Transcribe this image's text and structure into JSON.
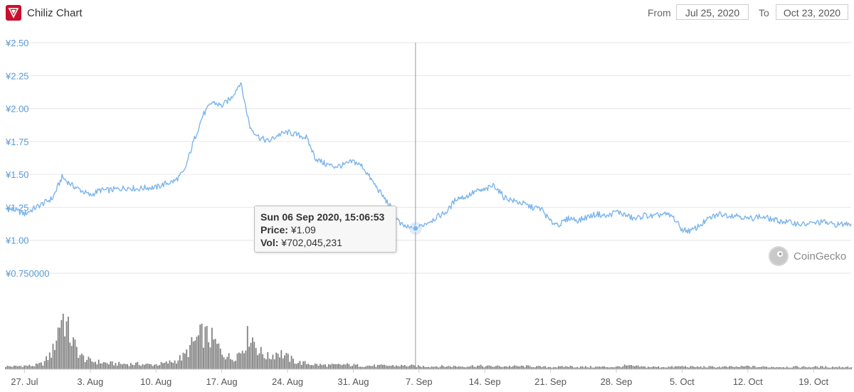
{
  "header": {
    "title": "Chiliz Chart",
    "from_label": "From",
    "from_value": "Jul 25, 2020",
    "to_label": "To",
    "to_value": "Oct 23, 2020"
  },
  "tooltip": {
    "date": "Sun 06 Sep 2020, 15:06:53",
    "price_label": "Price:",
    "price_value": "¥1.09",
    "vol_label": "Vol:",
    "vol_value": "¥702,045,231"
  },
  "watermark": "CoinGecko",
  "colors": {
    "line": "#7cb5ec",
    "axis_label": "#5b9bd5",
    "volume": "#6b6b6b",
    "brand": "#c8102e"
  },
  "chart_data": {
    "type": "line",
    "title": "Chiliz Chart",
    "x_range": [
      "2020-07-25",
      "2020-10-23"
    ],
    "ylim": [
      0.75,
      2.5
    ],
    "y_ticks": [
      "¥2.50",
      "¥2.25",
      "¥2.00",
      "¥1.75",
      "¥1.50",
      "¥1.25",
      "¥1.00",
      "¥0.750000"
    ],
    "y_tick_values": [
      2.5,
      2.25,
      2.0,
      1.75,
      1.5,
      1.25,
      1.0,
      0.75
    ],
    "x_ticks": [
      "27. Jul",
      "3. Aug",
      "10. Aug",
      "17. Aug",
      "24. Aug",
      "31. Aug",
      "7. Sep",
      "14. Sep",
      "21. Sep",
      "28. Sep",
      "5. Oct",
      "12. Oct",
      "19. Oct"
    ],
    "x_tick_dates": [
      "2020-07-27",
      "2020-08-03",
      "2020-08-10",
      "2020-08-17",
      "2020-08-24",
      "2020-08-31",
      "2020-09-07",
      "2020-09-14",
      "2020-09-21",
      "2020-09-28",
      "2020-10-05",
      "2020-10-12",
      "2020-10-19"
    ],
    "grid": true,
    "price_series": {
      "name": "Price",
      "x": [
        "2020-07-25",
        "2020-07-26",
        "2020-07-27",
        "2020-07-28",
        "2020-07-29",
        "2020-07-30",
        "2020-07-31",
        "2020-08-01",
        "2020-08-02",
        "2020-08-03",
        "2020-08-04",
        "2020-08-05",
        "2020-08-06",
        "2020-08-07",
        "2020-08-08",
        "2020-08-09",
        "2020-08-10",
        "2020-08-11",
        "2020-08-12",
        "2020-08-13",
        "2020-08-14",
        "2020-08-15",
        "2020-08-16",
        "2020-08-17",
        "2020-08-18",
        "2020-08-19",
        "2020-08-20",
        "2020-08-21",
        "2020-08-22",
        "2020-08-23",
        "2020-08-24",
        "2020-08-25",
        "2020-08-26",
        "2020-08-27",
        "2020-08-28",
        "2020-08-29",
        "2020-08-30",
        "2020-08-31",
        "2020-09-01",
        "2020-09-02",
        "2020-09-03",
        "2020-09-04",
        "2020-09-05",
        "2020-09-06",
        "2020-09-07",
        "2020-09-08",
        "2020-09-09",
        "2020-09-10",
        "2020-09-11",
        "2020-09-12",
        "2020-09-13",
        "2020-09-14",
        "2020-09-15",
        "2020-09-16",
        "2020-09-17",
        "2020-09-18",
        "2020-09-19",
        "2020-09-20",
        "2020-09-21",
        "2020-09-22",
        "2020-09-23",
        "2020-09-24",
        "2020-09-25",
        "2020-09-26",
        "2020-09-27",
        "2020-09-28",
        "2020-09-29",
        "2020-09-30",
        "2020-10-01",
        "2020-10-02",
        "2020-10-03",
        "2020-10-04",
        "2020-10-05",
        "2020-10-06",
        "2020-10-07",
        "2020-10-08",
        "2020-10-09",
        "2020-10-10",
        "2020-10-11",
        "2020-10-12",
        "2020-10-13",
        "2020-10-14",
        "2020-10-15",
        "2020-10-16",
        "2020-10-17",
        "2020-10-18",
        "2020-10-19",
        "2020-10-20",
        "2020-10-21",
        "2020-10-22",
        "2020-10-23"
      ],
      "y": [
        1.24,
        1.23,
        1.2,
        1.24,
        1.28,
        1.32,
        1.48,
        1.42,
        1.38,
        1.34,
        1.38,
        1.38,
        1.39,
        1.4,
        1.39,
        1.4,
        1.4,
        1.43,
        1.45,
        1.52,
        1.75,
        1.95,
        2.05,
        2.02,
        2.08,
        2.2,
        1.86,
        1.78,
        1.75,
        1.8,
        1.82,
        1.8,
        1.78,
        1.62,
        1.58,
        1.56,
        1.57,
        1.6,
        1.56,
        1.45,
        1.35,
        1.25,
        1.12,
        1.09,
        1.1,
        1.14,
        1.18,
        1.22,
        1.32,
        1.33,
        1.37,
        1.38,
        1.42,
        1.33,
        1.3,
        1.28,
        1.25,
        1.24,
        1.14,
        1.12,
        1.17,
        1.15,
        1.18,
        1.2,
        1.18,
        1.22,
        1.19,
        1.16,
        1.19,
        1.18,
        1.2,
        1.18,
        1.08,
        1.07,
        1.12,
        1.17,
        1.2,
        1.19,
        1.19,
        1.16,
        1.18,
        1.17,
        1.15,
        1.14,
        1.13,
        1.12,
        1.13,
        1.14,
        1.12,
        1.12,
        1.13
      ]
    },
    "volume_series": {
      "name": "Vol",
      "x": [
        "2020-07-25",
        "2020-07-26",
        "2020-07-27",
        "2020-07-28",
        "2020-07-29",
        "2020-07-30",
        "2020-07-31",
        "2020-08-01",
        "2020-08-02",
        "2020-08-03",
        "2020-08-04",
        "2020-08-05",
        "2020-08-06",
        "2020-08-07",
        "2020-08-08",
        "2020-08-09",
        "2020-08-10",
        "2020-08-11",
        "2020-08-12",
        "2020-08-13",
        "2020-08-14",
        "2020-08-15",
        "2020-08-16",
        "2020-08-17",
        "2020-08-18",
        "2020-08-19",
        "2020-08-20",
        "2020-08-21",
        "2020-08-22",
        "2020-08-23",
        "2020-08-24",
        "2020-08-25",
        "2020-08-26",
        "2020-08-27",
        "2020-08-28",
        "2020-08-29",
        "2020-08-30",
        "2020-08-31",
        "2020-09-01",
        "2020-09-02",
        "2020-09-03",
        "2020-09-04",
        "2020-09-05",
        "2020-09-06",
        "2020-09-07",
        "2020-09-08",
        "2020-09-09",
        "2020-09-10",
        "2020-09-11",
        "2020-09-12",
        "2020-09-13",
        "2020-09-14",
        "2020-09-15",
        "2020-09-16",
        "2020-09-17",
        "2020-09-18",
        "2020-09-19",
        "2020-09-20",
        "2020-09-21",
        "2020-09-22",
        "2020-09-23",
        "2020-09-24",
        "2020-09-25",
        "2020-09-26",
        "2020-09-27",
        "2020-09-28",
        "2020-09-29",
        "2020-09-30",
        "2020-10-01",
        "2020-10-02",
        "2020-10-03",
        "2020-10-04",
        "2020-10-05",
        "2020-10-06",
        "2020-10-07",
        "2020-10-08",
        "2020-10-09",
        "2020-10-10",
        "2020-10-11",
        "2020-10-12",
        "2020-10-13",
        "2020-10-14",
        "2020-10-15",
        "2020-10-16",
        "2020-10-17",
        "2020-10-18",
        "2020-10-19",
        "2020-10-20",
        "2020-10-21",
        "2020-10-22",
        "2020-10-23"
      ],
      "y": [
        0.05,
        0.05,
        0.06,
        0.06,
        0.1,
        0.3,
        0.95,
        0.5,
        0.22,
        0.14,
        0.12,
        0.1,
        0.09,
        0.09,
        0.09,
        0.08,
        0.08,
        0.1,
        0.14,
        0.22,
        0.45,
        0.6,
        0.5,
        0.3,
        0.18,
        0.3,
        0.62,
        0.3,
        0.2,
        0.3,
        0.2,
        0.12,
        0.1,
        0.08,
        0.07,
        0.07,
        0.08,
        0.07,
        0.06,
        0.06,
        0.06,
        0.06,
        0.06,
        0.06,
        0.05,
        0.05,
        0.05,
        0.05,
        0.05,
        0.05,
        0.06,
        0.05,
        0.05,
        0.05,
        0.05,
        0.05,
        0.05,
        0.04,
        0.04,
        0.04,
        0.05,
        0.04,
        0.04,
        0.04,
        0.04,
        0.04,
        0.06,
        0.05,
        0.04,
        0.04,
        0.04,
        0.04,
        0.05,
        0.04,
        0.04,
        0.04,
        0.04,
        0.04,
        0.04,
        0.05,
        0.04,
        0.04,
        0.04,
        0.04,
        0.04,
        0.04,
        0.04,
        0.04,
        0.04,
        0.04,
        0.04
      ]
    },
    "hover_point": {
      "x": "2020-09-06",
      "y": 1.09
    }
  }
}
